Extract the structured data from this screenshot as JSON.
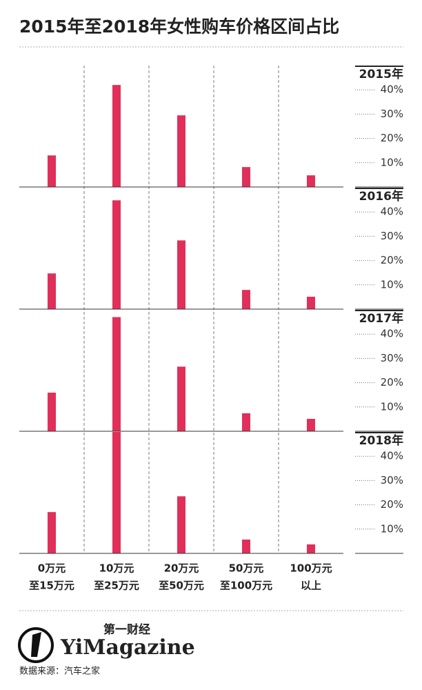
{
  "title": "2015年至2018年女性购车价格区间占比",
  "categories": [
    [
      "0万元",
      "至15万元"
    ],
    [
      "10万元",
      "至25万元"
    ],
    [
      "20万元",
      "至50万元"
    ],
    [
      "50万元",
      "至100万元"
    ],
    [
      "100万元",
      "以上"
    ]
  ],
  "logo": {
    "chinese": "第一财经",
    "name": "YiMagazine"
  },
  "source": "数据来源：汽车之家",
  "chart_data": [
    {
      "type": "bar",
      "title": "2015年",
      "values": [
        13,
        42,
        29.5,
        8.2,
        4.8
      ],
      "color": "#e0305a",
      "ylim": [
        0,
        50
      ],
      "yticks": [
        {
          "value": 10,
          "label": "10%"
        },
        {
          "value": 20,
          "label": "20%"
        },
        {
          "value": 30,
          "label": "30%"
        },
        {
          "value": 40,
          "label": "40%"
        }
      ]
    },
    {
      "type": "bar",
      "title": "2016年",
      "values": [
        14.7,
        44.8,
        28.3,
        7.9,
        5.1
      ],
      "color": "#e0305a",
      "ylim": [
        0,
        50
      ],
      "yticks": [
        {
          "value": 10,
          "label": "10%"
        },
        {
          "value": 20,
          "label": "20%"
        },
        {
          "value": 30,
          "label": "30%"
        },
        {
          "value": 40,
          "label": "40%"
        }
      ]
    },
    {
      "type": "bar",
      "title": "2017年",
      "values": [
        15.9,
        47,
        26.6,
        7.4,
        5.1
      ],
      "color": "#e0305a",
      "ylim": [
        0,
        50
      ],
      "yticks": [
        {
          "value": 10,
          "label": "10%"
        },
        {
          "value": 20,
          "label": "20%"
        },
        {
          "value": 30,
          "label": "30%"
        },
        {
          "value": 40,
          "label": "40%"
        }
      ]
    },
    {
      "type": "bar",
      "title": "2018年",
      "values": [
        17,
        50,
        23.5,
        5.7,
        3.7
      ],
      "color": "#e0305a",
      "ylim": [
        0,
        50
      ],
      "yticks": [
        {
          "value": 10,
          "label": "10%"
        },
        {
          "value": 20,
          "label": "20%"
        },
        {
          "value": 30,
          "label": "30%"
        },
        {
          "value": 40,
          "label": "40%"
        }
      ]
    }
  ]
}
